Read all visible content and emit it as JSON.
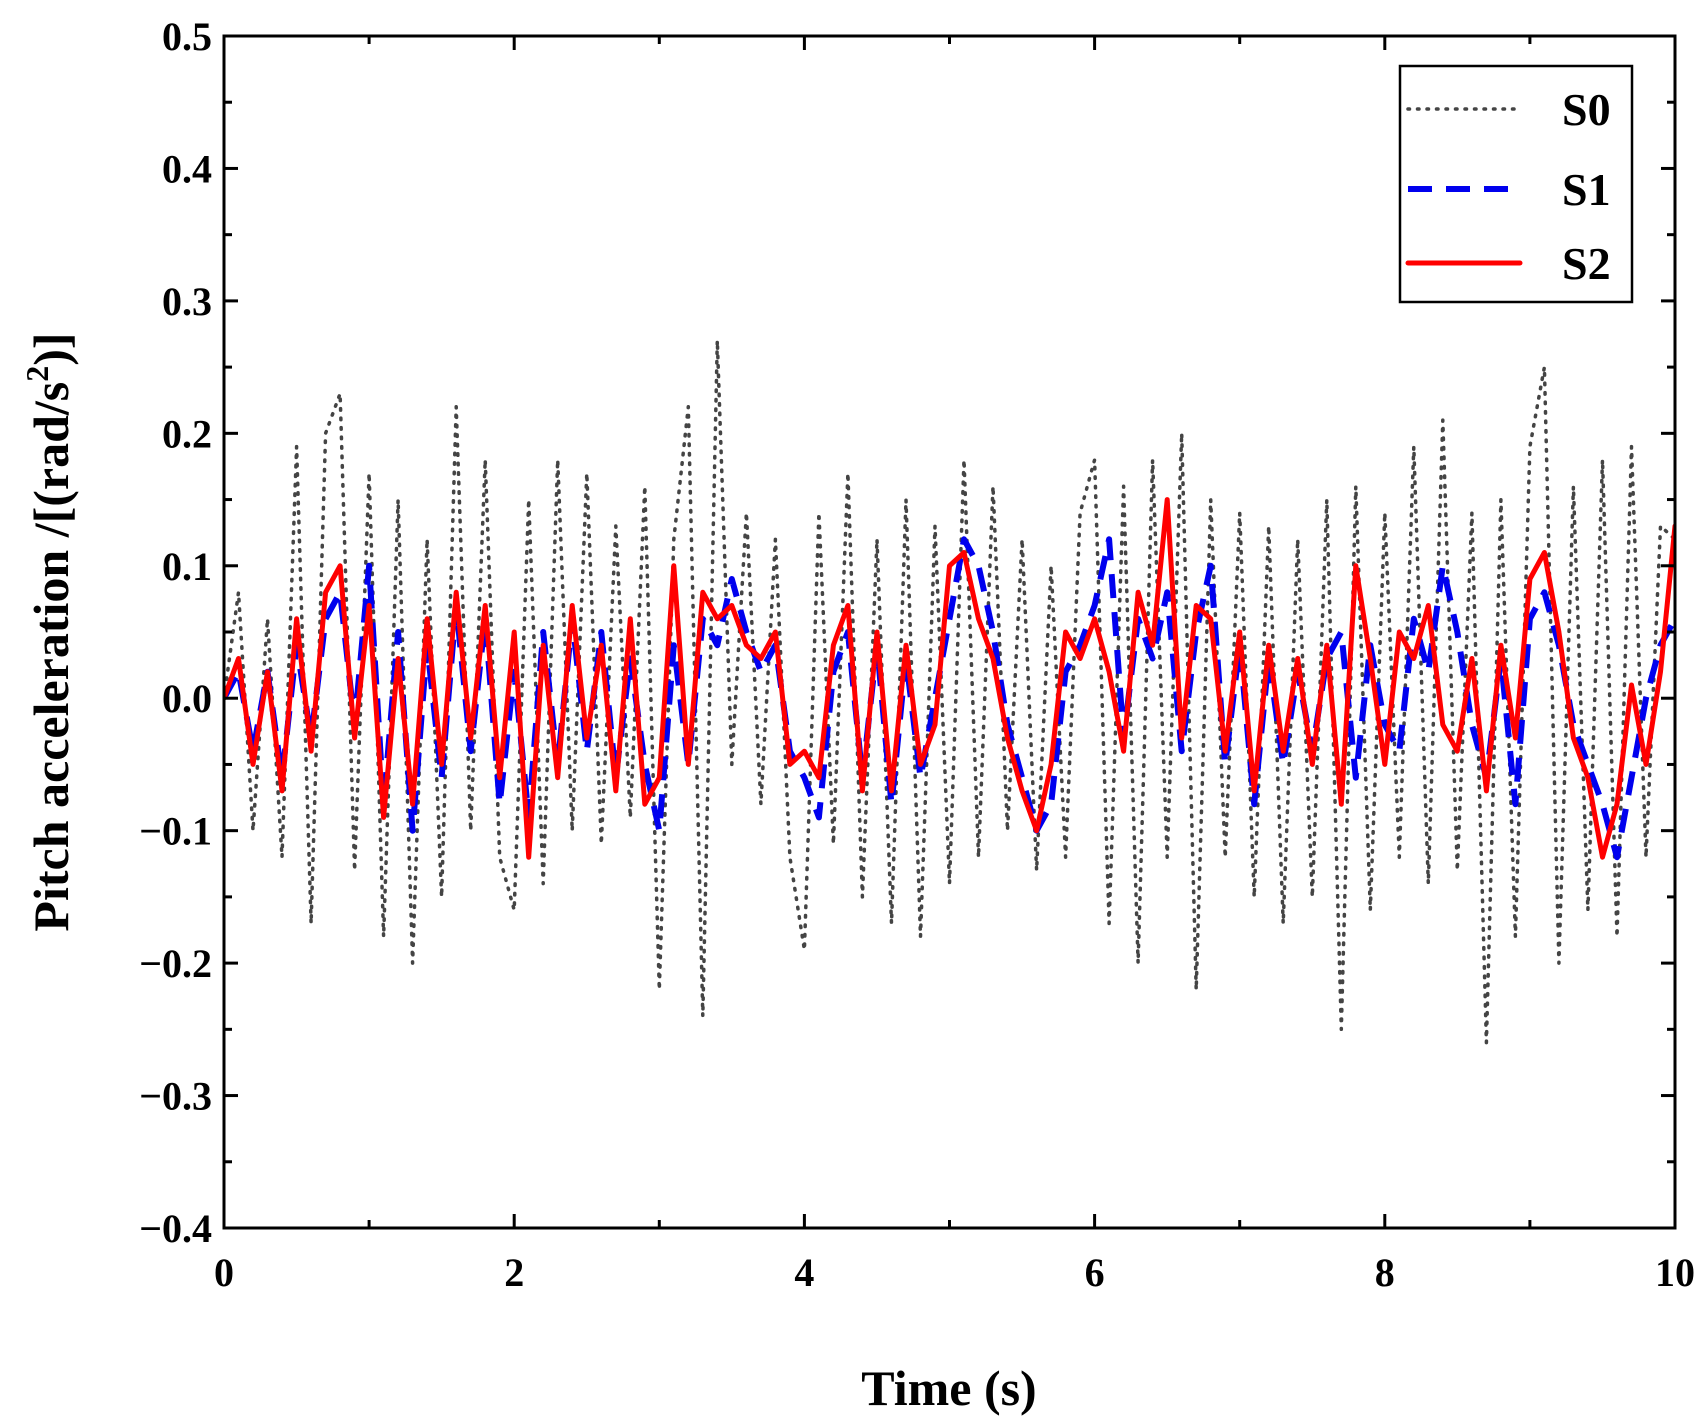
{
  "chart_data": {
    "type": "line",
    "title": "",
    "xlabel": "Time (s)",
    "ylabel_main": "Pitch acceleration /[(rad/s",
    "ylabel_sup": "2",
    "ylabel_tail": ")]",
    "xlim": [
      0,
      10
    ],
    "ylim": [
      -0.4,
      0.5
    ],
    "x_ticks": [
      0,
      2,
      4,
      6,
      8,
      10
    ],
    "x_tick_labels": [
      "0",
      "2",
      "4",
      "6",
      "8",
      "10"
    ],
    "y_ticks": [
      -0.4,
      -0.3,
      -0.2,
      -0.1,
      0.0,
      0.1,
      0.2,
      0.3,
      0.4,
      0.5
    ],
    "y_tick_labels": [
      "−0.4",
      "−0.3",
      "−0.2",
      "−0.1",
      "0.0",
      "0.1",
      "0.2",
      "0.3",
      "0.4",
      "0.5"
    ],
    "grid": false,
    "legend_position": "top-right",
    "series": [
      {
        "name": "S0",
        "style": "dotted",
        "color": "#444444",
        "x": [
          0.0,
          0.1,
          0.2,
          0.3,
          0.4,
          0.5,
          0.6,
          0.7,
          0.8,
          0.9,
          1.0,
          1.1,
          1.2,
          1.3,
          1.4,
          1.5,
          1.6,
          1.7,
          1.8,
          1.9,
          2.0,
          2.1,
          2.2,
          2.3,
          2.4,
          2.5,
          2.6,
          2.7,
          2.8,
          2.9,
          3.0,
          3.1,
          3.2,
          3.3,
          3.4,
          3.5,
          3.6,
          3.7,
          3.8,
          3.9,
          4.0,
          4.1,
          4.2,
          4.3,
          4.4,
          4.5,
          4.6,
          4.7,
          4.8,
          4.9,
          5.0,
          5.1,
          5.2,
          5.3,
          5.4,
          5.5,
          5.6,
          5.7,
          5.8,
          5.9,
          6.0,
          6.1,
          6.2,
          6.3,
          6.4,
          6.5,
          6.6,
          6.7,
          6.8,
          6.9,
          7.0,
          7.1,
          7.2,
          7.3,
          7.4,
          7.5,
          7.6,
          7.7,
          7.8,
          7.9,
          8.0,
          8.1,
          8.2,
          8.3,
          8.4,
          8.5,
          8.6,
          8.7,
          8.8,
          8.9,
          9.0,
          9.1,
          9.2,
          9.3,
          9.4,
          9.5,
          9.6,
          9.7,
          9.8,
          9.9,
          10.0
        ],
        "values": [
          0.0,
          0.08,
          -0.1,
          0.06,
          -0.12,
          0.19,
          -0.17,
          0.2,
          0.23,
          -0.13,
          0.17,
          -0.18,
          0.15,
          -0.2,
          0.12,
          -0.15,
          0.22,
          -0.1,
          0.18,
          -0.12,
          -0.16,
          0.15,
          -0.14,
          0.18,
          -0.1,
          0.17,
          -0.11,
          0.13,
          -0.09,
          0.16,
          -0.22,
          0.12,
          0.22,
          -0.24,
          0.27,
          -0.05,
          0.14,
          -0.08,
          0.12,
          -0.12,
          -0.19,
          0.14,
          -0.11,
          0.17,
          -0.15,
          0.12,
          -0.17,
          0.15,
          -0.18,
          0.13,
          -0.14,
          0.18,
          -0.12,
          0.16,
          -0.1,
          0.12,
          -0.13,
          0.1,
          -0.12,
          0.14,
          0.18,
          -0.17,
          0.16,
          -0.2,
          0.18,
          -0.12,
          0.2,
          -0.22,
          0.15,
          -0.12,
          0.14,
          -0.15,
          0.13,
          -0.17,
          0.12,
          -0.15,
          0.15,
          -0.25,
          0.16,
          -0.16,
          0.14,
          -0.12,
          0.19,
          -0.14,
          0.21,
          -0.13,
          0.14,
          -0.26,
          0.15,
          -0.18,
          0.19,
          0.25,
          -0.2,
          0.16,
          -0.16,
          0.18,
          -0.18,
          0.19,
          -0.12,
          0.13,
          0.12
        ]
      },
      {
        "name": "S1",
        "style": "dashed",
        "color": "#0000ee",
        "x": [
          0.0,
          0.1,
          0.2,
          0.3,
          0.4,
          0.5,
          0.6,
          0.7,
          0.8,
          0.9,
          1.0,
          1.1,
          1.2,
          1.3,
          1.4,
          1.5,
          1.6,
          1.7,
          1.8,
          1.9,
          2.0,
          2.1,
          2.2,
          2.3,
          2.4,
          2.5,
          2.6,
          2.7,
          2.8,
          2.9,
          3.0,
          3.1,
          3.2,
          3.3,
          3.4,
          3.5,
          3.6,
          3.7,
          3.8,
          3.9,
          4.0,
          4.1,
          4.2,
          4.3,
          4.4,
          4.5,
          4.6,
          4.7,
          4.8,
          4.9,
          5.0,
          5.1,
          5.2,
          5.3,
          5.4,
          5.5,
          5.6,
          5.7,
          5.8,
          5.9,
          6.0,
          6.1,
          6.2,
          6.3,
          6.4,
          6.5,
          6.6,
          6.7,
          6.8,
          6.9,
          7.0,
          7.1,
          7.2,
          7.3,
          7.4,
          7.5,
          7.6,
          7.7,
          7.8,
          7.9,
          8.0,
          8.1,
          8.2,
          8.3,
          8.4,
          8.5,
          8.6,
          8.7,
          8.8,
          8.9,
          9.0,
          9.1,
          9.2,
          9.3,
          9.4,
          9.5,
          9.6,
          9.7,
          9.8,
          9.9,
          10.0
        ],
        "values": [
          0.0,
          0.02,
          -0.04,
          0.02,
          -0.06,
          0.04,
          -0.03,
          0.06,
          0.08,
          -0.02,
          0.1,
          -0.08,
          0.05,
          -0.1,
          0.04,
          -0.06,
          0.07,
          -0.04,
          0.06,
          -0.08,
          0.02,
          -0.09,
          0.05,
          -0.05,
          0.06,
          -0.04,
          0.05,
          -0.06,
          0.03,
          -0.05,
          -0.1,
          0.04,
          -0.05,
          0.06,
          0.04,
          0.09,
          0.05,
          0.02,
          0.04,
          -0.04,
          -0.06,
          -0.09,
          0.02,
          0.05,
          -0.06,
          0.04,
          -0.08,
          0.03,
          -0.06,
          0.0,
          0.06,
          0.12,
          0.1,
          0.05,
          -0.02,
          -0.06,
          -0.1,
          -0.08,
          0.02,
          0.04,
          0.07,
          0.12,
          -0.03,
          0.06,
          0.03,
          0.08,
          -0.04,
          0.05,
          0.1,
          -0.05,
          0.04,
          -0.08,
          0.03,
          -0.05,
          0.02,
          -0.04,
          0.03,
          0.05,
          -0.06,
          0.04,
          -0.02,
          -0.04,
          0.06,
          0.02,
          0.1,
          0.05,
          -0.02,
          -0.06,
          0.03,
          -0.08,
          0.06,
          0.08,
          0.04,
          -0.02,
          -0.05,
          -0.08,
          -0.12,
          -0.06,
          0.0,
          0.04,
          0.06
        ]
      },
      {
        "name": "S2",
        "style": "solid",
        "color": "#ff0000",
        "x": [
          0.0,
          0.1,
          0.2,
          0.3,
          0.4,
          0.5,
          0.6,
          0.7,
          0.8,
          0.9,
          1.0,
          1.1,
          1.2,
          1.3,
          1.4,
          1.5,
          1.6,
          1.7,
          1.8,
          1.9,
          2.0,
          2.1,
          2.2,
          2.3,
          2.4,
          2.5,
          2.6,
          2.7,
          2.8,
          2.9,
          3.0,
          3.1,
          3.2,
          3.3,
          3.4,
          3.5,
          3.6,
          3.7,
          3.8,
          3.9,
          4.0,
          4.1,
          4.2,
          4.3,
          4.4,
          4.5,
          4.6,
          4.7,
          4.8,
          4.9,
          5.0,
          5.1,
          5.2,
          5.3,
          5.4,
          5.5,
          5.6,
          5.7,
          5.8,
          5.9,
          6.0,
          6.1,
          6.2,
          6.3,
          6.4,
          6.5,
          6.6,
          6.7,
          6.8,
          6.9,
          7.0,
          7.1,
          7.2,
          7.3,
          7.4,
          7.5,
          7.6,
          7.7,
          7.8,
          7.9,
          8.0,
          8.1,
          8.2,
          8.3,
          8.4,
          8.5,
          8.6,
          8.7,
          8.8,
          8.9,
          9.0,
          9.1,
          9.2,
          9.3,
          9.4,
          9.5,
          9.6,
          9.7,
          9.8,
          9.9,
          10.0
        ],
        "values": [
          0.0,
          0.03,
          -0.05,
          0.02,
          -0.07,
          0.06,
          -0.04,
          0.08,
          0.1,
          -0.03,
          0.07,
          -0.09,
          0.03,
          -0.08,
          0.06,
          -0.05,
          0.08,
          -0.03,
          0.07,
          -0.06,
          0.05,
          -0.12,
          0.04,
          -0.06,
          0.07,
          -0.03,
          0.04,
          -0.07,
          0.06,
          -0.08,
          -0.06,
          0.1,
          -0.05,
          0.08,
          0.06,
          0.07,
          0.04,
          0.03,
          0.05,
          -0.05,
          -0.04,
          -0.06,
          0.04,
          0.07,
          -0.07,
          0.05,
          -0.07,
          0.04,
          -0.05,
          -0.02,
          0.1,
          0.11,
          0.06,
          0.03,
          -0.03,
          -0.07,
          -0.1,
          -0.05,
          0.05,
          0.03,
          0.06,
          0.02,
          -0.04,
          0.08,
          0.04,
          0.15,
          -0.03,
          0.07,
          0.06,
          -0.04,
          0.05,
          -0.07,
          0.04,
          -0.04,
          0.03,
          -0.05,
          0.04,
          -0.08,
          0.1,
          0.03,
          -0.05,
          0.05,
          0.03,
          0.07,
          -0.02,
          -0.04,
          0.03,
          -0.07,
          0.04,
          -0.03,
          0.09,
          0.11,
          0.05,
          -0.03,
          -0.06,
          -0.12,
          -0.08,
          0.01,
          -0.05,
          0.02,
          0.13
        ]
      }
    ]
  }
}
